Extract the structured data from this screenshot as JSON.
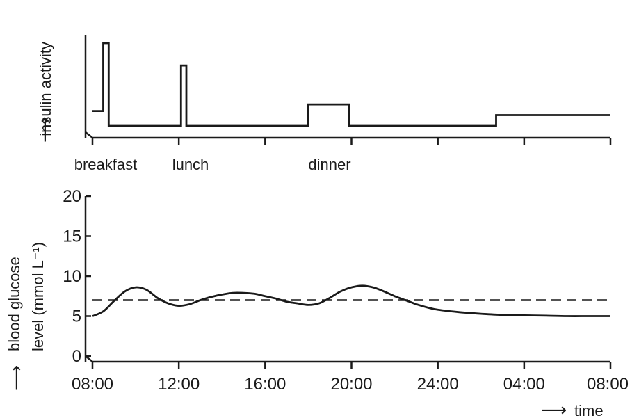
{
  "chart_data": [
    {
      "type": "line",
      "ylabel": "insulin activity",
      "meal_labels": [
        {
          "text": "breakfast",
          "time": 8
        },
        {
          "text": "lunch",
          "time": 12
        },
        {
          "text": "dinner",
          "time": 18
        }
      ],
      "x_range": [
        8,
        32
      ],
      "insulin_step": [
        [
          8.0,
          0.18
        ],
        [
          8.5,
          0.18
        ],
        [
          8.5,
          1.0
        ],
        [
          8.75,
          1.0
        ],
        [
          8.75,
          0.0
        ],
        [
          12.1,
          0.0
        ],
        [
          12.1,
          0.73
        ],
        [
          12.35,
          0.73
        ],
        [
          12.35,
          0.0
        ],
        [
          18.0,
          0.0
        ],
        [
          18.0,
          0.26
        ],
        [
          19.9,
          0.26
        ],
        [
          19.9,
          0.0
        ],
        [
          26.7,
          0.0
        ],
        [
          26.7,
          0.13
        ],
        [
          32.0,
          0.13
        ]
      ]
    },
    {
      "type": "line",
      "ylabel": "blood glucose level (mmol L⁻¹)",
      "xlabel": "time",
      "x_tick_labels": [
        "08:00",
        "12:00",
        "16:00",
        "20:00",
        "24:00",
        "04:00",
        "08:00"
      ],
      "y_ticks": [
        "0",
        "5",
        "10",
        "15",
        "20"
      ],
      "ylim": [
        0,
        20
      ],
      "x_range": [
        8,
        32
      ],
      "reference_line": {
        "value": 7.0,
        "style": "dashed"
      },
      "series": [
        {
          "x": [
            8.0,
            8.5,
            9.0,
            9.5,
            10.0,
            10.5,
            11.0,
            11.5,
            12.0,
            12.5,
            13.0,
            13.5,
            14.0,
            14.5,
            15.0,
            15.5,
            16.0,
            16.5,
            17.0,
            17.5,
            18.0,
            18.5,
            19.0,
            19.5,
            20.0,
            20.5,
            21.0,
            21.5,
            22.0,
            22.5,
            23.0,
            23.5,
            24.0,
            25.0,
            26.0,
            27.0,
            28.0,
            29.0,
            30.0,
            31.0,
            32.0
          ],
          "y": [
            5.0,
            5.6,
            6.9,
            8.1,
            8.6,
            8.3,
            7.3,
            6.6,
            6.3,
            6.5,
            7.0,
            7.4,
            7.7,
            7.9,
            7.9,
            7.8,
            7.5,
            7.2,
            6.8,
            6.6,
            6.4,
            6.6,
            7.3,
            8.1,
            8.6,
            8.8,
            8.6,
            8.1,
            7.5,
            7.0,
            6.5,
            6.1,
            5.8,
            5.5,
            5.3,
            5.15,
            5.1,
            5.05,
            5.0,
            5.0,
            5.0
          ]
        }
      ]
    }
  ]
}
